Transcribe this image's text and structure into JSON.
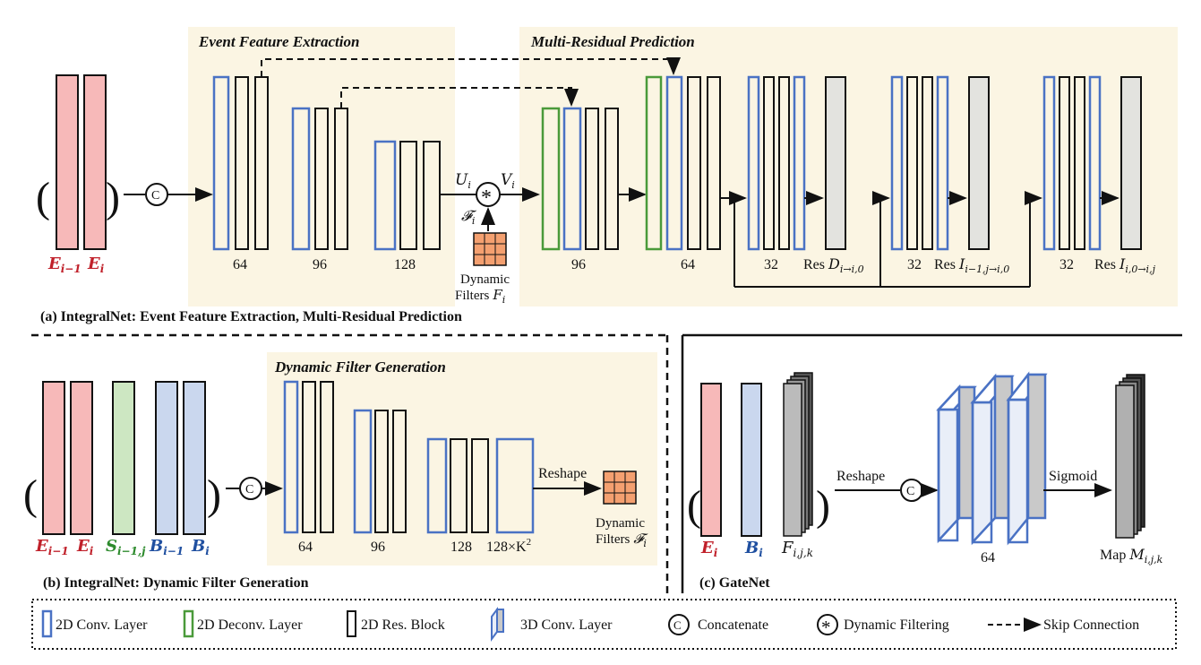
{
  "panel_a": {
    "section_event": "Event Feature Extraction",
    "section_multi": "Multi-Residual Prediction",
    "caption": "(a)  IntegralNet: Event Feature Extraction, Multi-Residual Prediction",
    "input_left": "E",
    "input_left_sub": "i−1",
    "input_right": "E",
    "input_right_sub": "i",
    "concat_symbol": "C",
    "ch_64": "64",
    "ch_96": "96",
    "ch_128": "128",
    "u_label": "U",
    "u_sub": "i",
    "v_label": "V",
    "v_sub": "i",
    "f_label": "𝓕",
    "f_sub": "i",
    "dyn_filters_line1": "Dynamic",
    "dyn_filters_line2": "Filters",
    "dyn_filters_sym": "F",
    "dyn_filters_sub": "i",
    "dec_96": "96",
    "dec_64": "64",
    "res1_ch": "32",
    "res1_label": "Res",
    "res1_sym": "D",
    "res1_sub": "i→i,0",
    "res2_ch": "32",
    "res2_label": "Res",
    "res2_sym": "I",
    "res2_sub": "i−1,j→i,0",
    "res3_ch": "32",
    "res3_label": "Res",
    "res3_sym": "I",
    "res3_sub": "i,0→i,j"
  },
  "panel_b": {
    "section": "Dynamic Filter Generation",
    "caption": "(b)  IntegralNet: Dynamic Filter Generation",
    "in1": "E",
    "in1_sub": "i−1",
    "in2": "E",
    "in2_sub": "i",
    "in3": "S",
    "in3_sub": "i−1,j",
    "in4": "B",
    "in4_sub": "i−1",
    "in5": "B",
    "in5_sub": "i",
    "concat_symbol": "C",
    "ch_64": "64",
    "ch_96": "96",
    "ch_128": "128",
    "ch_last": "128×K",
    "ch_last_sup": "2",
    "reshape": "Reshape",
    "dyn_line1": "Dynamic",
    "dyn_line2": "Filters",
    "dyn_sym": "𝓕",
    "dyn_sub": "i"
  },
  "panel_c": {
    "caption": "(c)  GateNet",
    "in1": "E",
    "in1_sub": "i",
    "in2": "B",
    "in2_sub": "i",
    "in3": "F",
    "in3_sub": "i,j,k",
    "reshape": "Reshape",
    "concat_symbol": "C",
    "ch_64": "64",
    "sigmoid": "Sigmoid",
    "map_label": "Map",
    "map_sym": "M",
    "map_sub": "i,j,k"
  },
  "legend": {
    "conv2d": "2D Conv. Layer",
    "deconv2d": "2D Deconv. Layer",
    "resblock": "2D Res. Block",
    "conv3d": "3D Conv. Layer",
    "concat_symbol": "C",
    "concat": "Concatenate",
    "dynfilter": "Dynamic Filtering",
    "skip": "Skip Connection"
  },
  "colors": {
    "conv_blue": "#4a72c4",
    "deconv_green": "#4a9a3a",
    "res_black": "#111111",
    "section_bg": "#fbf5e3",
    "input_red_fill": "#f7b9b9",
    "input_green_fill": "#cde7c2",
    "input_blue_fill": "#cad7ee",
    "output_gray": "#e3e3df",
    "filter_orange": "#f4a070"
  }
}
